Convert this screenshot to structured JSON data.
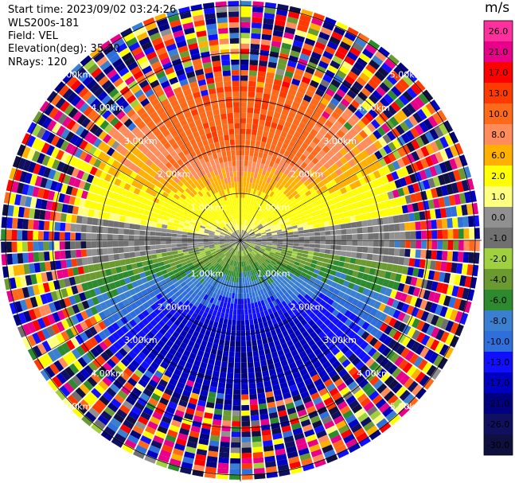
{
  "header": {
    "start_time": "Start time: 2023/09/02 03:24:26",
    "instrument": "WLS200s-181",
    "field": "Field: VEL",
    "elevation": "Elevation(deg): 35.30",
    "nrays": "NRays: 120"
  },
  "chart_data": {
    "type": "ppi",
    "field": "VEL",
    "elevation_deg": 35.3,
    "nrays": 120,
    "range_rings_km": [
      1.0,
      2.0,
      3.0,
      4.0,
      5.0
    ],
    "ring_label_text": [
      "1.00km",
      "2.00km",
      "3.00km",
      "4.00km",
      "5.00km"
    ],
    "max_range_km": 5.1,
    "colorbar": {
      "units": "m/s",
      "ticks": [
        "26.0",
        "21.0",
        "17.0",
        "13.0",
        "10.0",
        "8.0",
        "6.0",
        "2.0",
        "1.0",
        "0.0",
        "-1.0",
        "-2.0",
        "-4.0",
        "-6.0",
        "-8.0",
        "-10.0",
        "-13.0",
        "-17.0",
        "-21.0",
        "-26.0",
        "-30.0"
      ],
      "colors": [
        "#ff2f9e",
        "#e8008a",
        "#ff0000",
        "#ff3a00",
        "#ff6a1a",
        "#ff8c5a",
        "#ffb000",
        "#ffff00",
        "#ffff80",
        "#909090",
        "#707070",
        "#a0d040",
        "#6a9a30",
        "#2e8a2e",
        "#3a7fd0",
        "#2f6fdc",
        "#1010ff",
        "#0000c0",
        "#000080",
        "#101060",
        "#101040"
      ]
    },
    "wind_pattern": {
      "description_values": "radial velocity: positive (receding) toward north, negative (approaching) toward south",
      "peak_positive_ms": 13.0,
      "peak_negative_ms": -17.0
    }
  }
}
